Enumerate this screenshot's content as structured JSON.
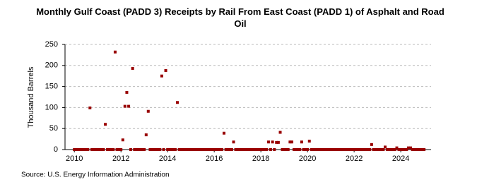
{
  "chart_data": {
    "type": "scatter",
    "title": "Monthly Gulf Coast (PADD 3) Receipts by Rail From East Coast (PADD 1) of Asphalt and Road Oil",
    "y_label": "Thousand Barrels",
    "source": "Source: U.S. Energy Information Administration",
    "color": "#990000",
    "grid": true,
    "xlim": [
      2009.6,
      2025.3
    ],
    "xticks": [
      2010,
      2012,
      2014,
      2016,
      2018,
      2020,
      2022,
      2024
    ],
    "ylim": [
      0,
      250
    ],
    "yticks": [
      0,
      50,
      100,
      150,
      200,
      250
    ],
    "x": [
      2010,
      2010.08,
      2010.17,
      2010.25,
      2010.33,
      2010.42,
      2010.5,
      2010.58,
      2010.67,
      2010.75,
      2010.83,
      2010.92,
      2011,
      2011.08,
      2011.17,
      2011.25,
      2011.33,
      2011.42,
      2011.5,
      2011.58,
      2011.67,
      2011.75,
      2011.83,
      2011.92,
      2012,
      2012.08,
      2012.17,
      2012.25,
      2012.33,
      2012.42,
      2012.5,
      2012.58,
      2012.67,
      2012.75,
      2012.83,
      2012.92,
      2013,
      2013.08,
      2013.17,
      2013.25,
      2013.33,
      2013.42,
      2013.5,
      2013.58,
      2013.67,
      2013.75,
      2013.83,
      2013.92,
      2014,
      2014.08,
      2014.17,
      2014.25,
      2014.33,
      2014.42,
      2014.5,
      2014.58,
      2014.67,
      2014.75,
      2014.83,
      2014.92,
      2015,
      2015.08,
      2015.17,
      2015.25,
      2015.33,
      2015.42,
      2015.5,
      2015.58,
      2015.67,
      2015.75,
      2015.83,
      2015.92,
      2016,
      2016.08,
      2016.17,
      2016.25,
      2016.33,
      2016.42,
      2016.5,
      2016.58,
      2016.67,
      2016.75,
      2016.83,
      2016.92,
      2017,
      2017.08,
      2017.17,
      2017.25,
      2017.33,
      2017.42,
      2017.5,
      2017.58,
      2017.67,
      2017.75,
      2017.83,
      2017.92,
      2018,
      2018.08,
      2018.17,
      2018.25,
      2018.33,
      2018.42,
      2018.5,
      2018.58,
      2018.67,
      2018.75,
      2018.83,
      2018.92,
      2019,
      2019.08,
      2019.17,
      2019.25,
      2019.33,
      2019.42,
      2019.5,
      2019.58,
      2019.67,
      2019.75,
      2019.83,
      2019.92,
      2020,
      2020.08,
      2020.17,
      2020.25,
      2020.33,
      2020.42,
      2020.5,
      2020.58,
      2020.67,
      2020.75,
      2020.83,
      2020.92,
      2021,
      2021.08,
      2021.17,
      2021.25,
      2021.33,
      2021.42,
      2021.5,
      2021.58,
      2021.67,
      2021.75,
      2021.83,
      2021.92,
      2022,
      2022.08,
      2022.17,
      2022.25,
      2022.33,
      2022.42,
      2022.5,
      2022.58,
      2022.67,
      2022.75,
      2022.83,
      2022.92,
      2023,
      2023.08,
      2023.17,
      2023.25,
      2023.33,
      2023.42,
      2023.5,
      2023.58,
      2023.67,
      2023.75,
      2023.83,
      2023.92,
      2024,
      2024.08,
      2024.17,
      2024.25,
      2024.33,
      2024.42,
      2024.5,
      2024.58,
      2024.67,
      2024.75,
      2024.83,
      2024.92,
      2025
    ],
    "values": [
      0,
      0,
      0,
      0,
      0,
      0,
      0,
      0,
      99,
      0,
      0,
      0,
      0,
      0,
      0,
      0,
      60,
      0,
      0,
      0,
      0,
      232,
      0,
      0,
      0,
      23,
      103,
      136,
      103,
      0,
      193,
      0,
      0,
      0,
      0,
      0,
      0,
      35,
      91,
      0,
      0,
      0,
      0,
      0,
      0,
      175,
      0,
      188,
      0,
      0,
      0,
      0,
      0,
      112,
      0,
      0,
      0,
      0,
      0,
      0,
      0,
      0,
      0,
      0,
      0,
      0,
      0,
      0,
      0,
      0,
      0,
      0,
      0,
      0,
      0,
      0,
      0,
      39,
      0,
      0,
      0,
      0,
      18,
      0,
      0,
      0,
      0,
      0,
      0,
      0,
      0,
      0,
      0,
      0,
      0,
      0,
      0,
      0,
      0,
      0,
      18,
      0,
      18,
      0,
      17,
      17,
      41,
      0,
      0,
      0,
      0,
      18,
      18,
      0,
      0,
      0,
      0,
      18,
      0,
      0,
      0,
      20,
      0,
      0,
      0,
      0,
      0,
      0,
      0,
      0,
      0,
      0,
      0,
      0,
      0,
      0,
      0,
      0,
      0,
      0,
      0,
      0,
      0,
      0,
      0,
      0,
      0,
      0,
      0,
      0,
      0,
      0,
      0,
      12,
      0,
      0,
      0,
      0,
      0,
      0,
      6,
      0,
      0,
      0,
      0,
      0,
      4,
      0,
      0,
      0,
      0,
      0,
      4,
      4,
      0,
      0,
      0,
      0,
      0,
      0,
      0
    ]
  }
}
